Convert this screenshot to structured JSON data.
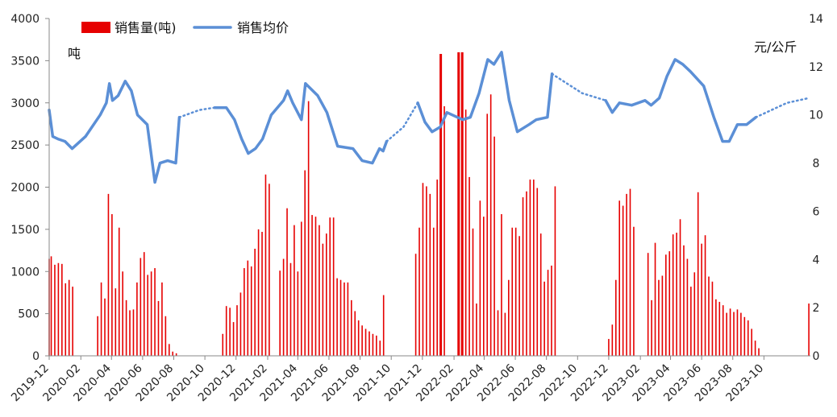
{
  "chart_data": {
    "type": "bar+line",
    "title": "",
    "y_left_unit": "吨",
    "y_right_unit": "元/公斤",
    "y_left_range": [
      0,
      4000
    ],
    "y_left_ticks": [
      "0",
      "500",
      "1000",
      "1500",
      "2000",
      "2500",
      "3000",
      "3500",
      "4000"
    ],
    "y_right_range": [
      0,
      14
    ],
    "y_right_ticks": [
      "0",
      "2",
      "4",
      "6",
      "8",
      "10",
      "12",
      "14"
    ],
    "x_range": [
      "2019-12-01",
      "2023-12-31"
    ],
    "x_tick_labels": [
      "2019-12",
      "2020-02",
      "2020-04",
      "2020-06",
      "2020-08",
      "2020-10",
      "2020-12",
      "2021-02",
      "2021-04",
      "2021-06",
      "2021-08",
      "2021-10",
      "2021-12",
      "2022-02",
      "2022-04",
      "2022-06",
      "2022-08",
      "2022-10",
      "2022-12",
      "2023-02",
      "2023-04",
      "2023-06",
      "2023-08",
      "2023-10"
    ],
    "grid": false,
    "legend": {
      "position": "top-left",
      "bar_label": "销售量(吨)",
      "line_label": "销售均价"
    },
    "colors": {
      "bar": "#e60000",
      "line": "#5b8fd6"
    },
    "bar_series": {
      "name": "销售量(吨)",
      "points": [
        [
          "2019-12-01",
          1150
        ],
        [
          "2019-12-05",
          1180
        ],
        [
          "2019-12-12",
          1080
        ],
        [
          "2019-12-19",
          1100
        ],
        [
          "2019-12-26",
          1090
        ],
        [
          "2020-01-02",
          860
        ],
        [
          "2020-01-09",
          900
        ],
        [
          "2020-01-16",
          820
        ],
        [
          "2020-03-05",
          470
        ],
        [
          "2020-03-12",
          870
        ],
        [
          "2020-03-19",
          680
        ],
        [
          "2020-03-26",
          1920
        ],
        [
          "2020-04-02",
          1680
        ],
        [
          "2020-04-09",
          800
        ],
        [
          "2020-04-16",
          1520
        ],
        [
          "2020-04-23",
          1000
        ],
        [
          "2020-04-30",
          660
        ],
        [
          "2020-05-07",
          540
        ],
        [
          "2020-05-14",
          550
        ],
        [
          "2020-05-21",
          870
        ],
        [
          "2020-05-28",
          1160
        ],
        [
          "2020-06-04",
          1230
        ],
        [
          "2020-06-11",
          960
        ],
        [
          "2020-06-18",
          1000
        ],
        [
          "2020-06-25",
          1040
        ],
        [
          "2020-07-02",
          650
        ],
        [
          "2020-07-09",
          870
        ],
        [
          "2020-07-16",
          470
        ],
        [
          "2020-07-23",
          140
        ],
        [
          "2020-07-30",
          50
        ],
        [
          "2020-08-06",
          30
        ],
        [
          "2020-11-05",
          260
        ],
        [
          "2020-11-12",
          590
        ],
        [
          "2020-11-19",
          570
        ],
        [
          "2020-11-26",
          400
        ],
        [
          "2020-12-03",
          600
        ],
        [
          "2020-12-10",
          750
        ],
        [
          "2020-12-17",
          1040
        ],
        [
          "2020-12-24",
          1130
        ],
        [
          "2020-12-31",
          1060
        ],
        [
          "2021-01-07",
          1270
        ],
        [
          "2021-01-14",
          1500
        ],
        [
          "2021-01-21",
          1470
        ],
        [
          "2021-01-28",
          2150
        ],
        [
          "2021-02-04",
          2040
        ],
        [
          "2021-02-25",
          1010
        ],
        [
          "2021-03-04",
          1150
        ],
        [
          "2021-03-11",
          1750
        ],
        [
          "2021-03-18",
          1100
        ],
        [
          "2021-03-25",
          1550
        ],
        [
          "2021-04-01",
          1000
        ],
        [
          "2021-04-08",
          1590
        ],
        [
          "2021-04-15",
          2200
        ],
        [
          "2021-04-22",
          3020
        ],
        [
          "2021-04-29",
          1670
        ],
        [
          "2021-05-06",
          1650
        ],
        [
          "2021-05-13",
          1550
        ],
        [
          "2021-05-20",
          1330
        ],
        [
          "2021-05-27",
          1450
        ],
        [
          "2021-06-03",
          1640
        ],
        [
          "2021-06-10",
          1640
        ],
        [
          "2021-06-17",
          920
        ],
        [
          "2021-06-24",
          900
        ],
        [
          "2021-07-01",
          870
        ],
        [
          "2021-07-08",
          870
        ],
        [
          "2021-07-15",
          660
        ],
        [
          "2021-07-22",
          530
        ],
        [
          "2021-07-29",
          420
        ],
        [
          "2021-08-05",
          360
        ],
        [
          "2021-08-12",
          320
        ],
        [
          "2021-08-19",
          290
        ],
        [
          "2021-08-26",
          260
        ],
        [
          "2021-09-02",
          240
        ],
        [
          "2021-09-09",
          180
        ],
        [
          "2021-09-16",
          720
        ],
        [
          "2021-11-18",
          1210
        ],
        [
          "2021-11-25",
          1520
        ],
        [
          "2021-12-02",
          2050
        ],
        [
          "2021-12-09",
          2010
        ],
        [
          "2021-12-16",
          1920
        ],
        [
          "2021-12-23",
          1520
        ],
        [
          "2021-12-30",
          2090
        ],
        [
          "2022-01-06",
          3580
        ],
        [
          "2022-01-13",
          2960
        ],
        [
          "2022-02-10",
          3600
        ],
        [
          "2022-02-17",
          3600
        ],
        [
          "2022-02-24",
          2920
        ],
        [
          "2022-03-03",
          2120
        ],
        [
          "2022-03-10",
          1510
        ],
        [
          "2022-03-17",
          620
        ],
        [
          "2022-03-24",
          1840
        ],
        [
          "2022-03-31",
          1650
        ],
        [
          "2022-04-07",
          2870
        ],
        [
          "2022-04-14",
          3100
        ],
        [
          "2022-04-21",
          2600
        ],
        [
          "2022-04-28",
          540
        ],
        [
          "2022-05-05",
          1680
        ],
        [
          "2022-05-12",
          510
        ],
        [
          "2022-05-19",
          900
        ],
        [
          "2022-05-26",
          1520
        ],
        [
          "2022-06-02",
          1520
        ],
        [
          "2022-06-09",
          1420
        ],
        [
          "2022-06-16",
          1880
        ],
        [
          "2022-06-23",
          1950
        ],
        [
          "2022-06-30",
          2090
        ],
        [
          "2022-07-07",
          2090
        ],
        [
          "2022-07-14",
          1990
        ],
        [
          "2022-07-21",
          1450
        ],
        [
          "2022-07-28",
          880
        ],
        [
          "2022-08-04",
          1020
        ],
        [
          "2022-08-11",
          1070
        ],
        [
          "2022-08-18",
          2010
        ],
        [
          "2022-12-01",
          200
        ],
        [
          "2022-12-08",
          370
        ],
        [
          "2022-12-15",
          900
        ],
        [
          "2022-12-22",
          1840
        ],
        [
          "2022-12-29",
          1780
        ],
        [
          "2023-01-05",
          1920
        ],
        [
          "2023-01-12",
          1980
        ],
        [
          "2023-01-19",
          1530
        ],
        [
          "2023-02-16",
          1220
        ],
        [
          "2023-02-23",
          660
        ],
        [
          "2023-03-02",
          1340
        ],
        [
          "2023-03-09",
          900
        ],
        [
          "2023-03-16",
          950
        ],
        [
          "2023-03-23",
          1200
        ],
        [
          "2023-03-30",
          1240
        ],
        [
          "2023-04-06",
          1440
        ],
        [
          "2023-04-13",
          1460
        ],
        [
          "2023-04-20",
          1620
        ],
        [
          "2023-04-27",
          1310
        ],
        [
          "2023-05-04",
          1150
        ],
        [
          "2023-05-11",
          820
        ],
        [
          "2023-05-18",
          990
        ],
        [
          "2023-05-25",
          1940
        ],
        [
          "2023-06-01",
          1330
        ],
        [
          "2023-06-08",
          1430
        ],
        [
          "2023-06-15",
          940
        ],
        [
          "2023-06-22",
          880
        ],
        [
          "2023-06-29",
          670
        ],
        [
          "2023-07-06",
          640
        ],
        [
          "2023-07-13",
          600
        ],
        [
          "2023-07-20",
          510
        ],
        [
          "2023-07-27",
          560
        ],
        [
          "2023-08-03",
          520
        ],
        [
          "2023-08-10",
          550
        ],
        [
          "2023-08-17",
          510
        ],
        [
          "2023-08-24",
          460
        ],
        [
          "2023-08-31",
          420
        ],
        [
          "2023-09-07",
          320
        ],
        [
          "2023-09-14",
          180
        ],
        [
          "2023-09-21",
          90
        ],
        [
          "2023-12-28",
          620
        ]
      ]
    },
    "line_series": {
      "name": "销售均价",
      "segments": [
        {
          "style": "solid",
          "points": [
            [
              "2019-12-01",
              10.2
            ],
            [
              "2019-12-08",
              9.1
            ],
            [
              "2019-12-18",
              9.0
            ],
            [
              "2020-01-01",
              8.9
            ],
            [
              "2020-01-15",
              8.6
            ],
            [
              "2020-02-10",
              9.1
            ],
            [
              "2020-03-10",
              10.0
            ],
            [
              "2020-03-22",
              10.5
            ],
            [
              "2020-03-28",
              11.3
            ],
            [
              "2020-04-03",
              10.6
            ],
            [
              "2020-04-14",
              10.8
            ],
            [
              "2020-04-28",
              11.4
            ],
            [
              "2020-05-10",
              11.0
            ],
            [
              "2020-05-22",
              10.0
            ],
            [
              "2020-06-10",
              9.6
            ],
            [
              "2020-06-25",
              7.2
            ],
            [
              "2020-07-05",
              8.0
            ],
            [
              "2020-07-20",
              8.1
            ],
            [
              "2020-08-05",
              8.0
            ],
            [
              "2020-08-12",
              9.9
            ]
          ]
        },
        {
          "style": "dotted",
          "points": [
            [
              "2020-08-12",
              9.9
            ],
            [
              "2020-09-20",
              10.2
            ],
            [
              "2020-10-20",
              10.3
            ]
          ]
        },
        {
          "style": "solid",
          "points": [
            [
              "2020-10-20",
              10.3
            ],
            [
              "2020-11-12",
              10.3
            ],
            [
              "2020-11-28",
              9.8
            ],
            [
              "2020-12-12",
              9.0
            ],
            [
              "2020-12-25",
              8.4
            ],
            [
              "2021-01-08",
              8.6
            ],
            [
              "2021-01-22",
              9.0
            ],
            [
              "2021-02-08",
              10.0
            ],
            [
              "2021-03-04",
              10.6
            ],
            [
              "2021-03-12",
              11.0
            ],
            [
              "2021-03-22",
              10.5
            ],
            [
              "2021-04-08",
              9.8
            ],
            [
              "2021-04-16",
              11.3
            ],
            [
              "2021-05-10",
              10.8
            ],
            [
              "2021-05-28",
              10.1
            ],
            [
              "2021-06-18",
              8.7
            ],
            [
              "2021-07-18",
              8.6
            ],
            [
              "2021-08-05",
              8.1
            ],
            [
              "2021-08-25",
              8.0
            ],
            [
              "2021-09-08",
              8.6
            ],
            [
              "2021-09-15",
              8.5
            ],
            [
              "2021-09-22",
              8.9
            ]
          ]
        },
        {
          "style": "dotted",
          "points": [
            [
              "2021-09-22",
              8.9
            ],
            [
              "2021-10-25",
              9.5
            ],
            [
              "2021-11-22",
              10.5
            ]
          ]
        },
        {
          "style": "solid",
          "points": [
            [
              "2021-11-22",
              10.5
            ],
            [
              "2021-12-06",
              9.7
            ],
            [
              "2021-12-20",
              9.3
            ],
            [
              "2022-01-05",
              9.5
            ],
            [
              "2022-01-18",
              10.1
            ],
            [
              "2022-02-18",
              9.8
            ],
            [
              "2022-03-05",
              9.9
            ],
            [
              "2022-03-22",
              10.9
            ],
            [
              "2022-04-08",
              12.3
            ],
            [
              "2022-04-20",
              12.1
            ],
            [
              "2022-05-05",
              12.6
            ],
            [
              "2022-05-20",
              10.6
            ],
            [
              "2022-06-05",
              9.3
            ],
            [
              "2022-06-28",
              9.6
            ],
            [
              "2022-07-12",
              9.8
            ],
            [
              "2022-08-03",
              9.9
            ],
            [
              "2022-08-12",
              11.7
            ]
          ]
        },
        {
          "style": "dotted",
          "points": [
            [
              "2022-08-12",
              11.7
            ],
            [
              "2022-10-10",
              10.9
            ],
            [
              "2022-11-25",
              10.6
            ]
          ]
        },
        {
          "style": "solid",
          "points": [
            [
              "2022-11-25",
              10.6
            ],
            [
              "2022-12-08",
              10.1
            ],
            [
              "2022-12-22",
              10.5
            ],
            [
              "2023-01-15",
              10.4
            ],
            [
              "2023-02-10",
              10.6
            ],
            [
              "2023-02-22",
              10.4
            ],
            [
              "2023-03-10",
              10.7
            ],
            [
              "2023-03-25",
              11.6
            ],
            [
              "2023-04-10",
              12.3
            ],
            [
              "2023-04-25",
              12.1
            ],
            [
              "2023-05-10",
              11.8
            ],
            [
              "2023-06-05",
              11.2
            ],
            [
              "2023-06-25",
              9.9
            ],
            [
              "2023-07-12",
              8.9
            ],
            [
              "2023-07-25",
              8.9
            ],
            [
              "2023-08-10",
              9.6
            ],
            [
              "2023-08-28",
              9.6
            ],
            [
              "2023-09-15",
              9.9
            ]
          ]
        },
        {
          "style": "dotted",
          "points": [
            [
              "2023-09-15",
              9.9
            ],
            [
              "2023-11-15",
              10.5
            ],
            [
              "2023-12-28",
              10.7
            ]
          ]
        }
      ]
    }
  }
}
